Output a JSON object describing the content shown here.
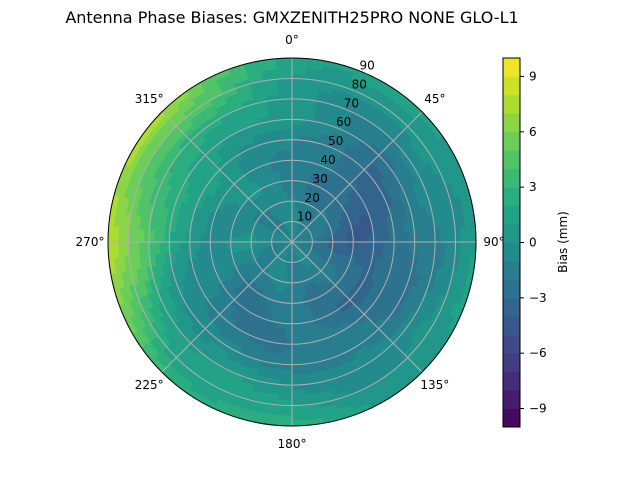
{
  "chart_data": {
    "type": "polar-contour",
    "title": "Antenna Phase Biases: GMXZENITH25PRO  NONE GLO-L1",
    "angle_tick_labels": [
      "0°",
      "45°",
      "90°",
      "135°",
      "180°",
      "225°",
      "270°",
      "315°"
    ],
    "radial_tick_labels": [
      "10",
      "20",
      "30",
      "40",
      "50",
      "60",
      "70",
      "80",
      "90"
    ],
    "radial_range": [
      0,
      90
    ],
    "angle_zero": "top",
    "angle_direction": "clockwise",
    "grid": true,
    "colormap": "viridis",
    "colorbar": {
      "label": "Bias (mm)",
      "range": [
        -10,
        10
      ],
      "level_step": 1,
      "tick_labels": [
        "9",
        "6",
        "3",
        "0",
        "−3",
        "−6",
        "−9"
      ],
      "tick_values": [
        9,
        6,
        3,
        0,
        -3,
        -6,
        -9
      ]
    },
    "azimuths": [
      0,
      45,
      90,
      135,
      180,
      225,
      270,
      315
    ],
    "zeniths": [
      0,
      10,
      20,
      30,
      40,
      50,
      60,
      70,
      80,
      90
    ],
    "values": [
      [
        -1,
        -1,
        -1,
        -1,
        -1,
        -1,
        0,
        0,
        1,
        2
      ],
      [
        -1,
        -1,
        -2,
        -3,
        -3,
        -3,
        -2,
        -1,
        0,
        1
      ],
      [
        -1,
        -2,
        -3,
        -4,
        -4,
        -3,
        -2,
        -1,
        0,
        1
      ],
      [
        -1,
        -1,
        -2,
        -2,
        -3,
        -2,
        -2,
        -1,
        0,
        1
      ],
      [
        -1,
        -1,
        -1,
        -2,
        -2,
        -2,
        -1,
        0,
        1,
        2
      ],
      [
        -1,
        -1,
        -1,
        -2,
        -2,
        -2,
        -1,
        1,
        2,
        3
      ],
      [
        -1,
        -1,
        0,
        0,
        0,
        1,
        2,
        4,
        6,
        8
      ],
      [
        -1,
        -1,
        -1,
        0,
        0,
        1,
        2,
        3,
        5,
        7
      ]
    ]
  }
}
